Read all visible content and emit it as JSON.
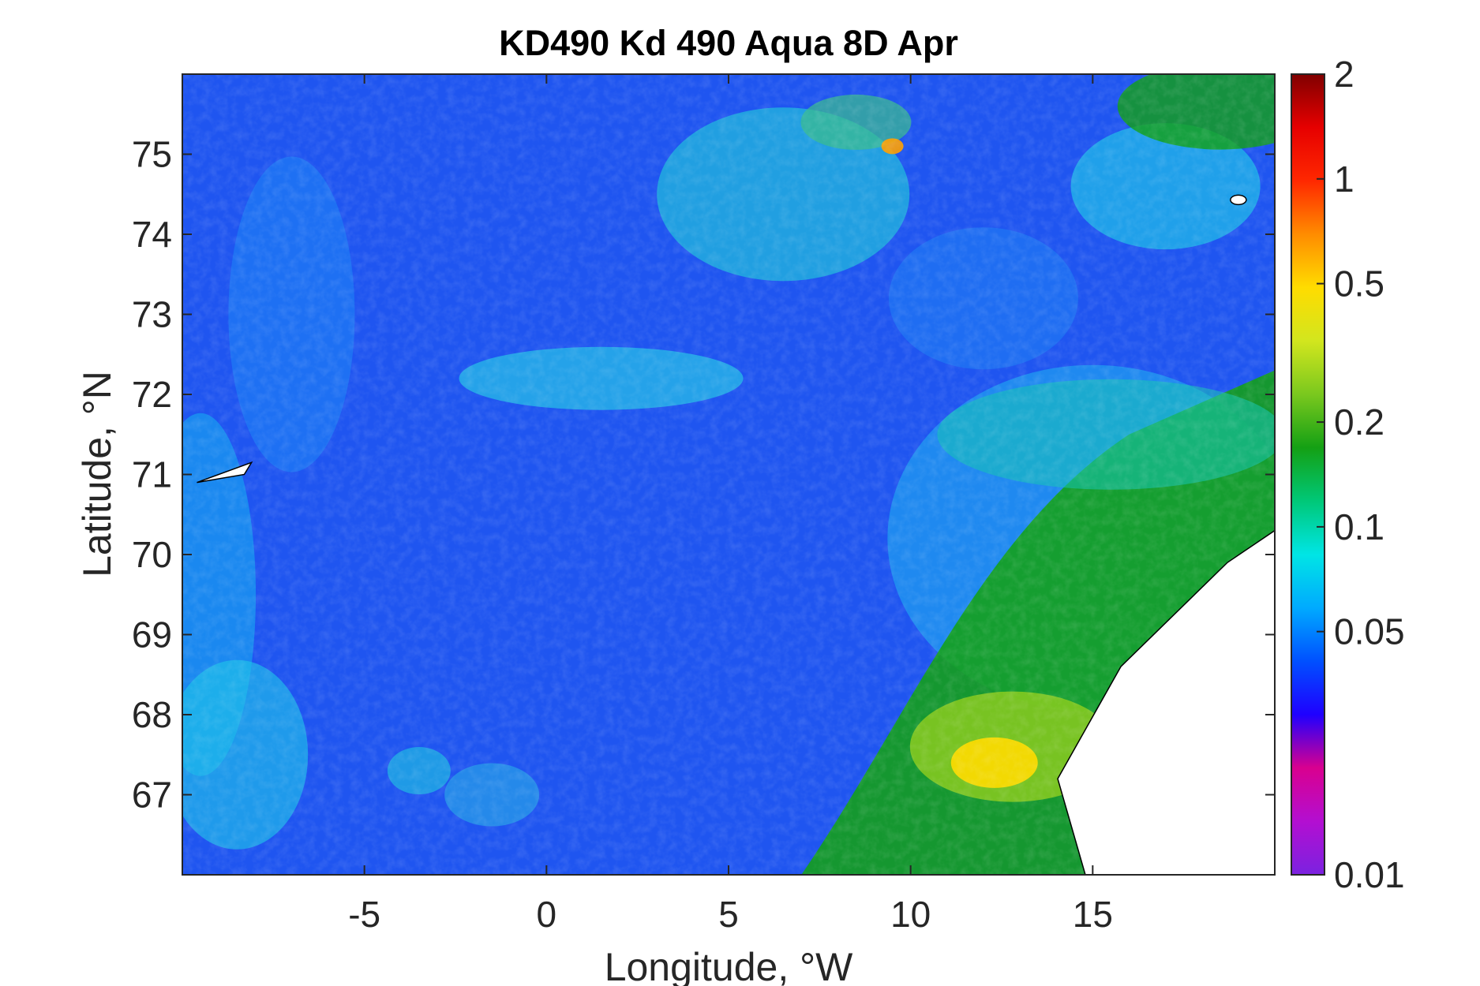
{
  "figure": {
    "title": "KD490 Kd 490 Aqua 8D Apr",
    "xlabel": "Longitude, °W",
    "ylabel": "Latitude, °N"
  },
  "chart_data": {
    "type": "heatmap",
    "title": "KD490 Kd 490 Aqua 8D Apr",
    "xlabel": "Longitude, °W",
    "ylabel": "Latitude, °N",
    "xlim": [
      -10,
      20
    ],
    "ylim": [
      66,
      76
    ],
    "xticks": [
      -5,
      0,
      5,
      10,
      15
    ],
    "xtick_labels": [
      "-5",
      "0",
      "5",
      "10",
      "15"
    ],
    "yticks": [
      67,
      68,
      69,
      70,
      71,
      72,
      73,
      74,
      75
    ],
    "ytick_labels": [
      "67",
      "68",
      "69",
      "70",
      "71",
      "72",
      "73",
      "74",
      "75"
    ],
    "colorbar": {
      "scale": "log",
      "range": [
        0.01,
        2
      ],
      "ticks": [
        0.01,
        0.05,
        0.1,
        0.2,
        0.5,
        1,
        2
      ],
      "tick_labels": [
        "0.01",
        "0.05",
        "0.1",
        "0.2",
        "0.5",
        "1",
        "2"
      ]
    },
    "fields": [
      {
        "name": "open-ocean-low",
        "lon": [
          -8,
          12
        ],
        "lat": [
          66,
          76
        ],
        "value": 0.045
      },
      {
        "name": "southeast-coastal-high",
        "lon": [
          10,
          20
        ],
        "lat": [
          66,
          72
        ],
        "value": 0.2
      },
      {
        "name": "lofoten-peak",
        "lon": [
          12.3
        ],
        "lat": [
          67.4
        ],
        "value": 0.5
      },
      {
        "name": "northeast-green-patch",
        "lon": [
          17,
          20
        ],
        "lat": [
          75,
          76
        ],
        "value": 0.2
      },
      {
        "name": "mid-north-cyan-band",
        "lon": [
          5,
          10
        ],
        "lat": [
          73,
          76
        ],
        "value": 0.1
      }
    ],
    "colors": {
      "scale": [
        "#7b22e0",
        "#b30fd1",
        "#d9008f",
        "#1f00ff",
        "#0050ff",
        "#00aaff",
        "#00e5e5",
        "#00c878",
        "#14a014",
        "#7ac81e",
        "#d2e61e",
        "#ffdc00",
        "#ff8c00",
        "#ff2800",
        "#e60000",
        "#800000"
      ],
      "frame": "#262626",
      "land": "#ffffff"
    }
  }
}
